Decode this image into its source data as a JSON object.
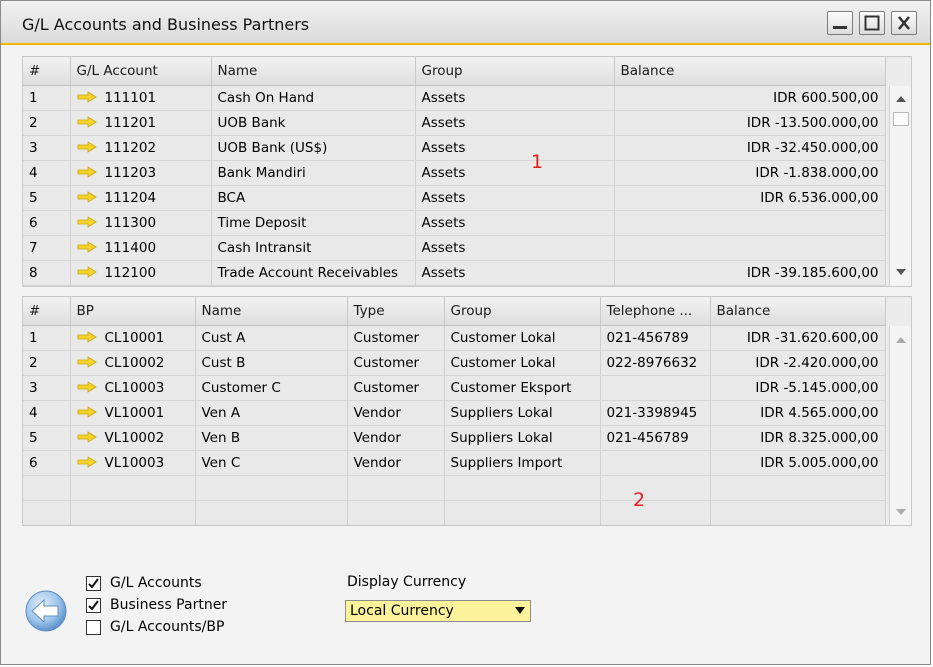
{
  "window": {
    "title": "G/L Accounts and Business Partners"
  },
  "gl_grid": {
    "headers": [
      "#",
      "G/L Account",
      "Name",
      "Group",
      "Balance"
    ],
    "rows": [
      {
        "num": "1",
        "account": "111101",
        "name": "Cash On Hand",
        "group": "Assets",
        "balance": "IDR 600.500,00"
      },
      {
        "num": "2",
        "account": "111201",
        "name": "UOB Bank",
        "group": "Assets",
        "balance": "IDR -13.500.000,00"
      },
      {
        "num": "3",
        "account": "111202",
        "name": "UOB Bank (US$)",
        "group": "Assets",
        "balance": "IDR -32.450.000,00"
      },
      {
        "num": "4",
        "account": "111203",
        "name": "Bank Mandiri",
        "group": "Assets",
        "balance": "IDR -1.838.000,00"
      },
      {
        "num": "5",
        "account": "111204",
        "name": "BCA",
        "group": "Assets",
        "balance": "IDR 6.536.000,00"
      },
      {
        "num": "6",
        "account": "111300",
        "name": "Time Deposit",
        "group": "Assets",
        "balance": ""
      },
      {
        "num": "7",
        "account": "111400",
        "name": "Cash Intransit",
        "group": "Assets",
        "balance": ""
      },
      {
        "num": "8",
        "account": "112100",
        "name": "Trade Account Receivables",
        "group": "Assets",
        "balance": "IDR -39.185.600,00"
      }
    ],
    "marker": "1"
  },
  "bp_grid": {
    "headers": [
      "#",
      "BP",
      "Name",
      "Type",
      "Group",
      "Telephone ...",
      "Balance"
    ],
    "rows": [
      {
        "num": "1",
        "bp": "CL10001",
        "name": "Cust A",
        "type": "Customer",
        "group": "Customer Lokal",
        "phone": "021-456789",
        "balance": "IDR -31.620.600,00"
      },
      {
        "num": "2",
        "bp": "CL10002",
        "name": "Cust B",
        "type": "Customer",
        "group": "Customer Lokal",
        "phone": "022-8976632",
        "balance": "IDR -2.420.000,00"
      },
      {
        "num": "3",
        "bp": "CL10003",
        "name": "Customer C",
        "type": "Customer",
        "group": "Customer Eksport",
        "phone": "",
        "balance": "IDR -5.145.000,00"
      },
      {
        "num": "4",
        "bp": "VL10001",
        "name": "Ven A",
        "type": "Vendor",
        "group": "Suppliers Lokal",
        "phone": "021-3398945",
        "balance": "IDR 4.565.000,00"
      },
      {
        "num": "5",
        "bp": "VL10002",
        "name": "Ven B",
        "type": "Vendor",
        "group": "Suppliers Lokal",
        "phone": "021-456789",
        "balance": "IDR 8.325.000,00"
      },
      {
        "num": "6",
        "bp": "VL10003",
        "name": "Ven C",
        "type": "Vendor",
        "group": "Suppliers Import",
        "phone": "",
        "balance": "IDR 5.005.000,00"
      }
    ],
    "empty_rows": 2,
    "marker": "2"
  },
  "options": {
    "checkboxes": [
      {
        "label": "G/L Accounts",
        "checked": true
      },
      {
        "label": "Business Partner",
        "checked": true
      },
      {
        "label": "G/L Accounts/BP",
        "checked": false
      }
    ],
    "display_currency_label": "Display Currency",
    "display_currency_value": "Local Currency"
  },
  "colors": {
    "accent": "#f2b705",
    "link_arrow": "#f5d327",
    "marker": "#e0201c",
    "dropdown_bg": "#fdf39a"
  }
}
